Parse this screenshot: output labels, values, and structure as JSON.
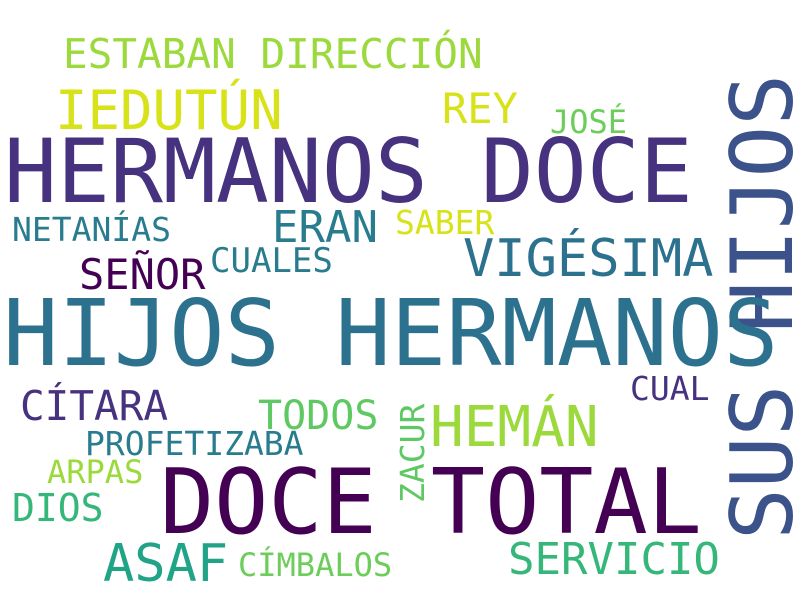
{
  "colors": {
    "yellow_green": "#9bd93c",
    "yellow": "#d8e219",
    "light_green": "#6ccd5a",
    "green": "#5ec962",
    "teal_green": "#20a386",
    "teal": "#287c8e",
    "teal_dark": "#2c728e",
    "blue": "#3b528b",
    "indigo": "#46327e",
    "purple": "#440154",
    "med_green": "#35b779"
  },
  "words": [
    {
      "text": "ESTABAN DIRECCIÓN",
      "color": "yellow_green"
    },
    {
      "text": "IEDUTÚN",
      "color": "yellow"
    },
    {
      "text": "REY",
      "color": "yellow"
    },
    {
      "text": "JOSÉ",
      "color": "light_green"
    },
    {
      "text": "HERMANOS DOCE",
      "color": "indigo"
    },
    {
      "text": "SUS HIJOS",
      "color": "blue"
    },
    {
      "text": "NETANÍAS",
      "color": "teal"
    },
    {
      "text": "ERAN",
      "color": "teal"
    },
    {
      "text": "SABER",
      "color": "yellow"
    },
    {
      "text": "VIGÉSIMA",
      "color": "teal_dark"
    },
    {
      "text": "SEÑOR",
      "color": "purple"
    },
    {
      "text": "CUALES",
      "color": "teal"
    },
    {
      "text": "HIJOS HERMANOS",
      "color": "teal_dark"
    },
    {
      "text": "CÍTARA",
      "color": "indigo"
    },
    {
      "text": "CUAL",
      "color": "indigo"
    },
    {
      "text": "TODOS",
      "color": "green"
    },
    {
      "text": "HEMÁN",
      "color": "yellow_green"
    },
    {
      "text": "PROFETIZABA",
      "color": "teal"
    },
    {
      "text": "ZACUR",
      "color": "green"
    },
    {
      "text": "ARPAS",
      "color": "yellow_green"
    },
    {
      "text": "DIOS",
      "color": "med_green"
    },
    {
      "text": "DOCE TOTAL",
      "color": "purple"
    },
    {
      "text": "ASAF",
      "color": "teal_green"
    },
    {
      "text": "CÍMBALOS",
      "color": "light_green"
    },
    {
      "text": "SERVICIO",
      "color": "med_green"
    }
  ]
}
